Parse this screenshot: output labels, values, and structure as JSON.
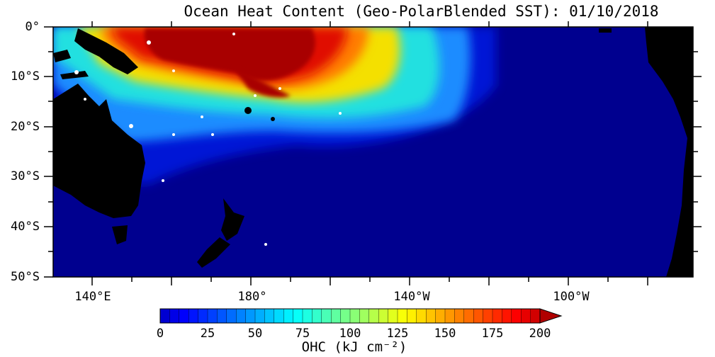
{
  "title": "Ocean Heat Content (Geo-PolarBlended SST): 01/10/2018",
  "y_axis_labels": [
    "0°",
    "10°S",
    "20°S",
    "30°S",
    "40°S",
    "50°S"
  ],
  "x_axis_labels": [
    "140°E",
    "180°",
    "140°W",
    "100°W"
  ],
  "colorbar": {
    "tick_labels": [
      "0",
      "25",
      "50",
      "75",
      "100",
      "125",
      "150",
      "175",
      "200"
    ],
    "units_label": "OHC (kJ cm⁻²)",
    "min": 0,
    "max": 200,
    "step": 5
  },
  "colors": {
    "ocean_low": "#00008f",
    "land": "#000000",
    "warm_core": "#a80000"
  }
}
